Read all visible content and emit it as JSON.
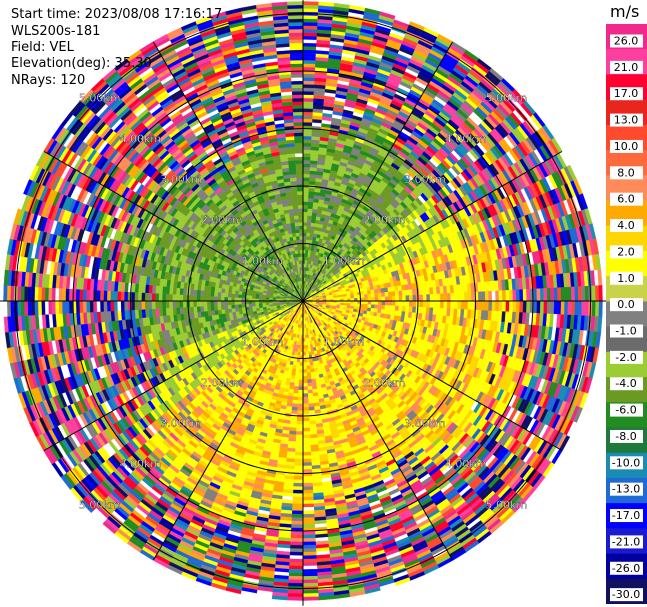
{
  "info": {
    "start_time": "Start time: 2023/08/08 17:16:17",
    "instrument": "WLS200s-181",
    "field": "Field: VEL",
    "elevation": "Elevation(deg): 35.30",
    "nrays": "NRays: 120"
  },
  "colorbar": {
    "unit": "m/s",
    "ticks": [
      "26.0",
      "21.0",
      "17.0",
      "13.0",
      "10.0",
      "8.0",
      "6.0",
      "4.0",
      "2.0",
      "1.0",
      "0.0",
      "-1.0",
      "-2.0",
      "-4.0",
      "-6.0",
      "-8.0",
      "-10.0",
      "-13.0",
      "-17.0",
      "-21.0",
      "-26.0",
      "-30.0"
    ],
    "colors": [
      "#f02a8a",
      "#ff3f9f",
      "#ff0030",
      "#e8261e",
      "#ff4a2e",
      "#ff6a3c",
      "#ff8b5a",
      "#ffaa00",
      "#ffd700",
      "#ffff00",
      "#c9d34a",
      "#808080",
      "#6b6b6b",
      "#9bcc33",
      "#6b9a22",
      "#228b22",
      "#1e7a3a",
      "#1a8cb4",
      "#1f6ad6",
      "#0000ff",
      "#1a1ad0",
      "#0000a0",
      "#101060"
    ]
  },
  "chart_data": {
    "type": "heatmap",
    "subtype": "ppi-radial-velocity",
    "field": "VEL",
    "units": "m/s",
    "nrays": 120,
    "ring_labels": [
      "1.00km",
      "2.00km",
      "3.00km",
      "4.00km",
      "5.00km"
    ],
    "range_rings_km": [
      1,
      2,
      3,
      4,
      5
    ],
    "max_range_km": 5.2,
    "cardinal_azimuths_deg": [
      0,
      90,
      180,
      270
    ],
    "diagonal_azimuths_deg": [
      30,
      60,
      120,
      150,
      210,
      240,
      300,
      330
    ],
    "velocity_pattern": {
      "description_of_values": "inner region: negative velocities (green/grey) toward north-west, positive (yellow/orange) toward south-east; noise beyond ~3.2 km",
      "near_range_km": 3.2
    }
  }
}
